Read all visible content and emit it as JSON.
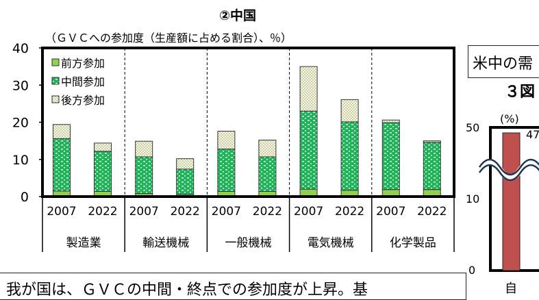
{
  "title": "②中国",
  "subtitle": "（ＧＶＣへの参加度（生産額に占める割合）、％）",
  "chart_data": {
    "type": "bar",
    "stacked": true,
    "ylim": [
      0,
      40
    ],
    "yticks": [
      0,
      10,
      20,
      30,
      40
    ],
    "legend_position": "top-left",
    "groups": [
      "製造業",
      "輸送機械",
      "一般機械",
      "電気機械",
      "化学製品"
    ],
    "years": [
      "2007",
      "2022"
    ],
    "categories": [
      "製造業 2007",
      "製造業 2022",
      "輸送機械 2007",
      "輸送機械 2022",
      "一般機械 2007",
      "一般機械 2022",
      "電気機械 2007",
      "電気機械 2022",
      "化学製品 2007",
      "化学製品 2022"
    ],
    "series": [
      {
        "name": "前方参加",
        "color": "#92d050",
        "values": [
          1.5,
          1.4,
          0.8,
          0.6,
          1.4,
          1.4,
          2.0,
          1.7,
          1.9,
          1.9
        ]
      },
      {
        "name": "中間参加",
        "color": "#1fb35a",
        "values": [
          14.1,
          10.8,
          9.9,
          6.8,
          11.4,
          9.3,
          21.0,
          18.4,
          18.0,
          12.7
        ]
      },
      {
        "name": "後方参加",
        "color": "#f2f0d0",
        "values": [
          3.8,
          2.2,
          4.2,
          2.8,
          4.8,
          4.5,
          12.0,
          6.0,
          0.7,
          0.4
        ]
      }
    ]
  },
  "right_panel": {
    "box_text": "米中の需",
    "figure_label": "３図",
    "unit": "(%)",
    "yticks": [
      "50",
      "10",
      "0"
    ],
    "bar_value": "47",
    "bar_color": "#c0504d",
    "x_label": "自"
  },
  "note": "我が国は、ＧＶＣの中間・終点での参加度が上昇。基"
}
